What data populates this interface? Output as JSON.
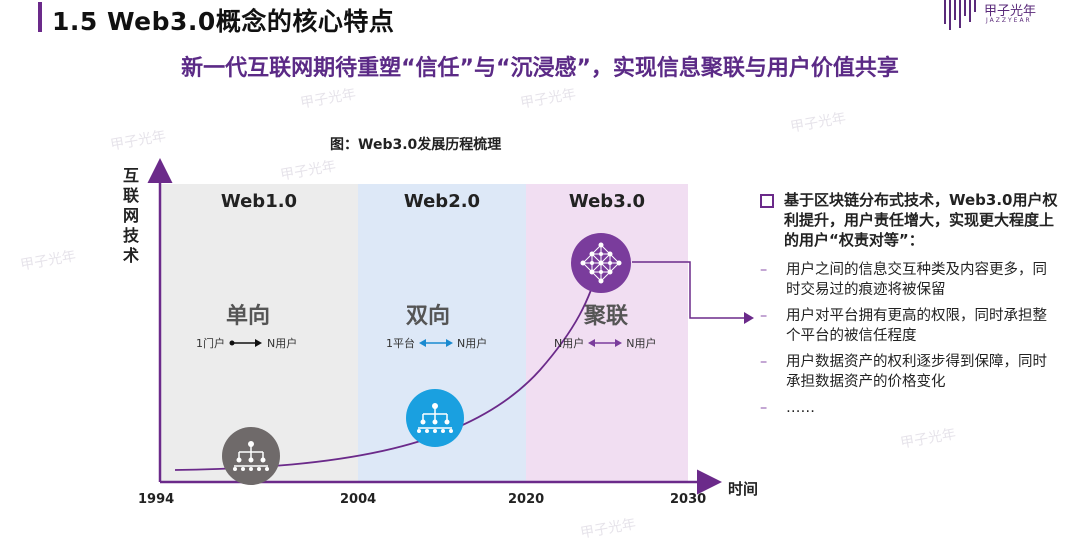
{
  "header": {
    "title": "1.5 Web3.0概念的核心特点",
    "logo_text": "甲子光年",
    "logo_sub": "JAZZYEAR",
    "subtitle": "新一代互联网期待重塑“信任”与“沉浸感”，实现信息聚联与用户价值共享"
  },
  "diagram": {
    "figure_title": "图：Web3.0发展历程梳理",
    "y_axis_label": "互联网技术",
    "x_axis_label": "时间",
    "ticks": [
      "1994",
      "2004",
      "2020",
      "2030"
    ],
    "eras": [
      {
        "name": "Web1.0",
        "mode": "单向",
        "from": "1门户",
        "to": "N用户",
        "arrow": "→",
        "color": "#ececec",
        "icon": "hierarchy-network-icon",
        "icon_color": "#6f6a6a"
      },
      {
        "name": "Web2.0",
        "mode": "双向",
        "from": "1平台",
        "to": "N用户",
        "arrow": "↔",
        "color": "#dde8f7",
        "icon": "hierarchy-network-icon",
        "icon_color": "#1aa0e0"
      },
      {
        "name": "Web3.0",
        "mode": "聚联",
        "from": "N用户",
        "to": "N用户",
        "arrow": "↔",
        "color": "#f1def2",
        "icon": "mesh-network-icon",
        "icon_color": "#7a3c9c"
      }
    ]
  },
  "bullets": {
    "heading": "基于区块链分布式技术，Web3.0用户权利提升，用户责任增大，实现更大程度上的用户“权责对等”：",
    "items": [
      "用户之间的信息交互种类及内容更多，同时交易过的痕迹将被保留",
      "用户对平台拥有更高的权限，同时承担整个平台的被信任程度",
      "用户数据资产的权利逐步得到保障，同时承担数据资产的价格变化",
      "……"
    ]
  },
  "watermark": "甲子光年"
}
